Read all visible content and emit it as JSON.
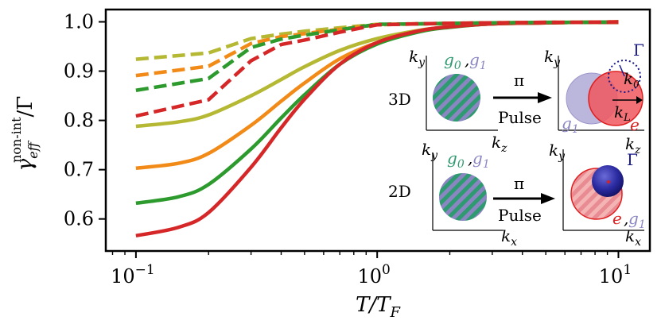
{
  "chart_data": {
    "type": "line",
    "xscale": "log",
    "xlim": [
      0.075,
      13.5
    ],
    "ylim": [
      0.535,
      1.025
    ],
    "xlabel": "T/T_F",
    "ylabel": "γ_eff^non-int/Γ",
    "x_ticks": [
      {
        "value": 0.1,
        "base": "10",
        "exp": "−1"
      },
      {
        "value": 1,
        "base": "10",
        "exp": "0"
      },
      {
        "value": 10,
        "base": "10",
        "exp": "1"
      }
    ],
    "y_ticks": [
      {
        "value": 0.6,
        "label": "0.6"
      },
      {
        "value": 0.7,
        "label": "0.7"
      },
      {
        "value": 0.8,
        "label": "0.8"
      },
      {
        "value": 0.9,
        "label": "0.9"
      },
      {
        "value": 1.0,
        "label": "1.0"
      }
    ],
    "series": [
      {
        "color": "#b5b833",
        "style": "solid",
        "x": [
          0.1,
          0.15,
          0.2,
          0.3,
          0.4,
          0.5,
          0.7,
          1,
          1.5,
          2,
          3,
          5,
          7,
          10
        ],
        "y": [
          0.788,
          0.797,
          0.811,
          0.85,
          0.883,
          0.909,
          0.942,
          0.966,
          0.983,
          0.99,
          0.996,
          0.998,
          0.999,
          0.999
        ]
      },
      {
        "color": "#f28a17",
        "style": "solid",
        "x": [
          0.1,
          0.15,
          0.2,
          0.3,
          0.4,
          0.5,
          0.7,
          1,
          1.5,
          2,
          3,
          5,
          7,
          10
        ],
        "y": [
          0.703,
          0.713,
          0.733,
          0.79,
          0.839,
          0.876,
          0.925,
          0.958,
          0.981,
          0.99,
          0.996,
          0.998,
          0.999,
          0.999
        ]
      },
      {
        "color": "#2c9a2c",
        "style": "solid",
        "x": [
          0.1,
          0.15,
          0.2,
          0.3,
          0.4,
          0.5,
          0.7,
          1,
          1.5,
          2,
          3,
          5,
          7,
          10
        ],
        "y": [
          0.632,
          0.645,
          0.67,
          0.742,
          0.805,
          0.852,
          0.914,
          0.955,
          0.98,
          0.989,
          0.996,
          0.998,
          0.999,
          0.999
        ]
      },
      {
        "color": "#d62728",
        "style": "solid",
        "x": [
          0.1,
          0.15,
          0.2,
          0.3,
          0.4,
          0.5,
          0.7,
          1,
          1.5,
          2,
          3,
          5,
          7,
          10
        ],
        "y": [
          0.566,
          0.583,
          0.613,
          0.705,
          0.785,
          0.843,
          0.914,
          0.958,
          0.982,
          0.99,
          0.996,
          0.998,
          0.999,
          0.999
        ]
      },
      {
        "color": "#b5b833",
        "style": "dashed",
        "x": [
          0.1,
          0.2,
          0.3,
          0.4,
          0.5,
          0.7,
          1,
          1.5,
          2,
          3,
          5,
          7,
          10
        ],
        "y": [
          0.924,
          0.937,
          0.966,
          0.975,
          0.981,
          0.988,
          0.995,
          0.996,
          0.997,
          0.998,
          0.999,
          0.999,
          1.0
        ]
      },
      {
        "color": "#f28a17",
        "style": "dashed",
        "x": [
          0.1,
          0.2,
          0.3,
          0.4,
          0.5,
          0.7,
          1,
          1.5,
          2,
          3,
          5,
          7,
          10
        ],
        "y": [
          0.891,
          0.91,
          0.956,
          0.97,
          0.976,
          0.985,
          0.994,
          0.996,
          0.997,
          0.998,
          0.999,
          0.999,
          1.0
        ]
      },
      {
        "color": "#2c9a2c",
        "style": "dashed",
        "x": [
          0.1,
          0.2,
          0.3,
          0.4,
          0.5,
          0.7,
          1,
          1.5,
          2,
          3,
          5,
          7,
          10
        ],
        "y": [
          0.861,
          0.885,
          0.948,
          0.965,
          0.973,
          0.984,
          0.995,
          0.996,
          0.997,
          0.998,
          0.999,
          0.999,
          1.0
        ]
      },
      {
        "color": "#d62728",
        "style": "dashed",
        "x": [
          0.1,
          0.2,
          0.3,
          0.4,
          0.5,
          0.7,
          1,
          1.5,
          2,
          3,
          5,
          7,
          10
        ],
        "y": [
          0.809,
          0.842,
          0.921,
          0.954,
          0.963,
          0.979,
          0.994,
          0.996,
          0.997,
          0.998,
          0.999,
          0.999,
          1.0
        ]
      }
    ],
    "grid": false,
    "legend": "none",
    "inset": {
      "row_3d_label": "3D",
      "row_2d_label": "2D",
      "pulse_symbol": "π",
      "pulse_word": "Pulse",
      "g0": "g",
      "g0_sub": "0",
      "g1": "g",
      "g1_sub": "1",
      "comma": ",",
      "e": "e",
      "k": "k",
      "sub_x": "x",
      "sub_y": "y",
      "sub_z": "z",
      "sub_0": "0",
      "sub_L": "L",
      "gamma": "Γ",
      "colors": {
        "g0": "#2e9a6f",
        "g1": "#8a86c2",
        "e": "#e01f1f",
        "gamma": "#1a1a8c"
      }
    }
  }
}
